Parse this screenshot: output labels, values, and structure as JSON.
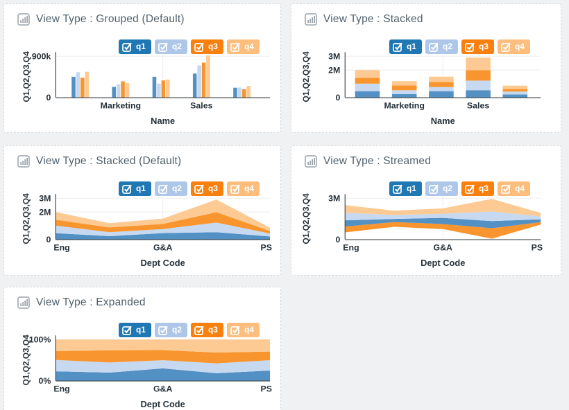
{
  "page": {
    "background": "#eff1f3",
    "card_background": "#ffffff",
    "card_border": "#d3d7db",
    "title_color": "#50606c",
    "axis_text_color": "#27323a",
    "grid_color": "#ececec",
    "axis_line_color": "#3c4348"
  },
  "legend": {
    "items": [
      {
        "id": "q1",
        "label": "q1",
        "checked": true,
        "pill_color": "#1f77b4",
        "fill_color": "#5390c4"
      },
      {
        "id": "q2",
        "label": "q2",
        "checked": true,
        "pill_color": "#aec7e8",
        "fill_color": "#c7d9f0"
      },
      {
        "id": "q3",
        "label": "q3",
        "checked": true,
        "pill_color": "#f8800e",
        "fill_color": "#f9952f"
      },
      {
        "id": "q4",
        "label": "q4",
        "checked": true,
        "pill_color": "#fcbd7d",
        "fill_color": "#fcca92"
      }
    ]
  },
  "chart_data": [
    {
      "id": "grouped",
      "type": "bar",
      "variant": "grouped",
      "title": "View Type : Grouped (Default)",
      "x_axis_title": "Name",
      "y_axis_title": "Q1,Q2,Q3,Q4",
      "categories": [
        "",
        "Marketing",
        "",
        "Sales",
        ""
      ],
      "y_max": 900000,
      "y_ticks": [
        {
          "value": 900000,
          "label": "900k"
        },
        {
          "value": 0,
          "label": "0"
        }
      ],
      "legend_position": "top-right",
      "grid": true,
      "series": [
        {
          "name": "q1",
          "values": [
            450000,
            230000,
            450000,
            520000,
            210000
          ]
        },
        {
          "name": "q2",
          "values": [
            550000,
            290000,
            300000,
            700000,
            215000
          ]
        },
        {
          "name": "q3",
          "values": [
            430000,
            350000,
            370000,
            760000,
            180000
          ]
        },
        {
          "name": "q4",
          "values": [
            560000,
            310000,
            390000,
            920000,
            250000
          ]
        }
      ]
    },
    {
      "id": "stacked-bar",
      "type": "bar",
      "variant": "stacked",
      "title": "View Type : Stacked",
      "x_axis_title": "Name",
      "y_axis_title": "Q1,Q2,Q3,Q4",
      "categories": [
        "",
        "Marketing",
        "",
        "Sales",
        ""
      ],
      "y_max": 3000000,
      "y_ticks": [
        {
          "value": 3000000,
          "label": "3M"
        },
        {
          "value": 2000000,
          "label": "2M"
        },
        {
          "value": 0,
          "label": "0"
        }
      ],
      "legend_position": "top-right",
      "grid": true,
      "series": [
        {
          "name": "q1",
          "values": [
            450000,
            230000,
            450000,
            520000,
            210000
          ]
        },
        {
          "name": "q2",
          "values": [
            550000,
            290000,
            300000,
            700000,
            215000
          ]
        },
        {
          "name": "q3",
          "values": [
            430000,
            350000,
            370000,
            760000,
            180000
          ]
        },
        {
          "name": "q4",
          "values": [
            560000,
            310000,
            390000,
            920000,
            250000
          ]
        }
      ]
    },
    {
      "id": "stacked-area",
      "type": "area",
      "variant": "stacked",
      "title": "View Type : Stacked (Default)",
      "x_axis_title": "Dept Code",
      "y_axis_title": "Q1,Q2,Q3,Q4",
      "categories": [
        "Eng",
        "",
        "G&A",
        "",
        "PS"
      ],
      "y_max": 3000000,
      "y_ticks": [
        {
          "value": 3000000,
          "label": "3M"
        },
        {
          "value": 2000000,
          "label": "2M"
        },
        {
          "value": 0,
          "label": "0"
        }
      ],
      "legend_position": "top-right",
      "grid": true,
      "series": [
        {
          "name": "q1",
          "values": [
            450000,
            230000,
            450000,
            520000,
            210000
          ]
        },
        {
          "name": "q2",
          "values": [
            550000,
            290000,
            300000,
            700000,
            215000
          ]
        },
        {
          "name": "q3",
          "values": [
            430000,
            350000,
            370000,
            760000,
            180000
          ]
        },
        {
          "name": "q4",
          "values": [
            560000,
            310000,
            390000,
            920000,
            250000
          ]
        }
      ]
    },
    {
      "id": "streamed",
      "type": "area",
      "variant": "stream",
      "title": "View Type : Streamed",
      "x_axis_title": "Dept Code",
      "y_axis_title": "Q1,Q2,Q3,Q4",
      "categories": [
        "Eng",
        "",
        "G&A",
        "",
        "PS"
      ],
      "y_max": 3000000,
      "y_ticks": [
        {
          "value": 3000000,
          "label": "3M"
        },
        {
          "value": 0,
          "label": "0"
        }
      ],
      "stack_order": [
        "q3",
        "q1",
        "q2",
        "q4"
      ],
      "legend_position": "top-right",
      "grid": true,
      "series": [
        {
          "name": "q1",
          "values": [
            450000,
            230000,
            450000,
            520000,
            210000
          ]
        },
        {
          "name": "q2",
          "values": [
            550000,
            290000,
            300000,
            700000,
            215000
          ]
        },
        {
          "name": "q3",
          "values": [
            430000,
            350000,
            370000,
            760000,
            180000
          ]
        },
        {
          "name": "q4",
          "values": [
            560000,
            310000,
            390000,
            920000,
            250000
          ]
        }
      ]
    },
    {
      "id": "expanded",
      "type": "area",
      "variant": "expanded",
      "title": "View Type : Expanded",
      "x_axis_title": "Dept Code",
      "y_axis_title": "Q1,Q2,Q3,Q4",
      "categories": [
        "Eng",
        "",
        "G&A",
        "",
        "PS"
      ],
      "y_max": 100,
      "normalized_percent": true,
      "y_ticks": [
        {
          "value": 100,
          "label": "100%"
        },
        {
          "value": 0,
          "label": "0%"
        }
      ],
      "legend_position": "top-right",
      "grid": true,
      "series": [
        {
          "name": "q1",
          "values": [
            450000,
            230000,
            450000,
            520000,
            210000
          ]
        },
        {
          "name": "q2",
          "values": [
            550000,
            290000,
            300000,
            700000,
            215000
          ]
        },
        {
          "name": "q3",
          "values": [
            430000,
            350000,
            370000,
            760000,
            180000
          ]
        },
        {
          "name": "q4",
          "values": [
            560000,
            310000,
            390000,
            920000,
            250000
          ]
        }
      ]
    }
  ]
}
